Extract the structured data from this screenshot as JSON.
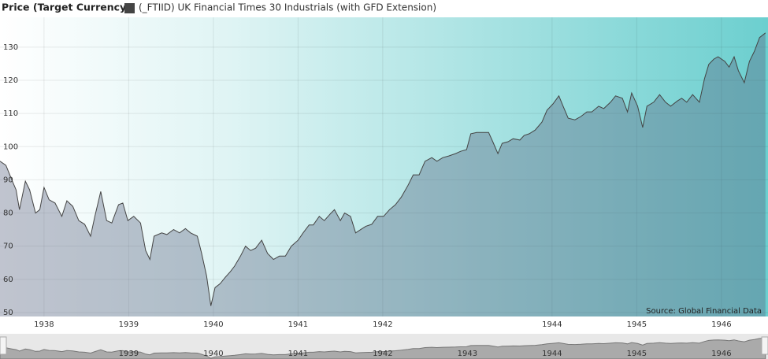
{
  "chart_data": {
    "type": "area",
    "title": "Price (Target Currency)",
    "source": "Source: Global Financial Data",
    "series": [
      {
        "name": "(_FTIID) UK Financial Times 30 Industrials (with GFD Extension)",
        "color": "#444444",
        "values": [
          95.6,
          94.4,
          90,
          87,
          81,
          89.6,
          87,
          80,
          81,
          87.7,
          84,
          83,
          79,
          83.7,
          82,
          77.7,
          76.6,
          73,
          79,
          86.5,
          77.7,
          77,
          82.5,
          83,
          77.7,
          79,
          77,
          68.7,
          66,
          73,
          74,
          73.5,
          75,
          74,
          75.3,
          74,
          73,
          68,
          61,
          52,
          57.5,
          58.7,
          60.6,
          62.3,
          64,
          67,
          70,
          68.7,
          69.4,
          71.8,
          67.8,
          66,
          67,
          67,
          70,
          71.8,
          74,
          76.4,
          76.4,
          79,
          77.7,
          80,
          81,
          77.7,
          80,
          79,
          74,
          75,
          76,
          76.6,
          79,
          79,
          81,
          82.5,
          84.8,
          88.4,
          91.5,
          91.5,
          95.6,
          96.7,
          95.6,
          96.7,
          97.2,
          97.9,
          98.6,
          99.1,
          103.9,
          104.3,
          104.3,
          104.3,
          101.5,
          97.9,
          101,
          101.5,
          102.4,
          102,
          103.4,
          103.9,
          105,
          107.4,
          111,
          112.9,
          115.3,
          112.2,
          108.6,
          108.1,
          109.1,
          110.5,
          110.5,
          112.2,
          111.5,
          113.4,
          115.3,
          114.6,
          110.5,
          116.2,
          112.2,
          105.8,
          112.2,
          113.4,
          115.7,
          113.4,
          112.2,
          113.8,
          114.6,
          113.4,
          115.7,
          113.4,
          120.5,
          124.8,
          126.4,
          127.1,
          125.7,
          124,
          127.1,
          122.9,
          119.3,
          125.7,
          128.8,
          132.9,
          134.3
        ]
      }
    ],
    "x": [
      1937.48,
      1937.55,
      1937.62,
      1937.67,
      1937.71,
      1937.78,
      1937.83,
      1937.9,
      1937.95,
      1938.0,
      1938.06,
      1938.13,
      1938.21,
      1938.27,
      1938.34,
      1938.41,
      1938.48,
      1938.55,
      1938.6,
      1938.67,
      1938.74,
      1938.8,
      1938.88,
      1938.93,
      1938.99,
      1939.06,
      1939.14,
      1939.2,
      1939.25,
      1939.3,
      1939.39,
      1939.45,
      1939.53,
      1939.6,
      1939.67,
      1939.73,
      1939.81,
      1939.86,
      1939.92,
      1939.97,
      1940.02,
      1940.08,
      1940.14,
      1940.2,
      1940.25,
      1940.32,
      1940.38,
      1940.44,
      1940.5,
      1940.57,
      1940.64,
      1940.71,
      1940.78,
      1940.85,
      1940.92,
      1941.0,
      1941.06,
      1941.13,
      1941.18,
      1941.25,
      1941.31,
      1941.39,
      1941.43,
      1941.5,
      1941.55,
      1941.62,
      1941.68,
      1941.74,
      1941.8,
      1941.87,
      1941.94,
      1942.01,
      1942.08,
      1942.15,
      1942.22,
      1942.3,
      1942.36,
      1942.43,
      1942.5,
      1942.58,
      1942.64,
      1942.71,
      1942.78,
      1942.86,
      1942.92,
      1942.99,
      1943.04,
      1943.11,
      1943.17,
      1943.25,
      1943.3,
      1943.36,
      1943.41,
      1943.48,
      1943.54,
      1943.62,
      1943.67,
      1943.73,
      1943.8,
      1943.88,
      1943.94,
      1944.01,
      1944.08,
      1944.13,
      1944.19,
      1944.27,
      1944.34,
      1944.41,
      1944.47,
      1944.55,
      1944.61,
      1944.69,
      1944.75,
      1944.83,
      1944.89,
      1944.94,
      1945.01,
      1945.07,
      1945.12,
      1945.2,
      1945.27,
      1945.34,
      1945.4,
      1945.48,
      1945.53,
      1945.59,
      1945.66,
      1945.74,
      1945.8,
      1945.85,
      1945.91,
      1945.96,
      1946.04,
      1946.09,
      1946.15,
      1946.2,
      1946.27,
      1946.33,
      1946.39,
      1946.45,
      1946.52
    ],
    "xlim": [
      1937.48,
      1946.55
    ],
    "xticks": [
      1938,
      1939,
      1940,
      1941,
      1942,
      1944,
      1945,
      1946
    ],
    "ylim": [
      48.8,
      139
    ],
    "yticks": [
      50,
      60,
      70,
      80,
      90,
      100,
      110,
      120,
      130
    ],
    "grid": true,
    "navigator_xticks": [
      1939,
      1940,
      1941,
      1942,
      1943,
      1944,
      1945,
      1946
    ]
  }
}
